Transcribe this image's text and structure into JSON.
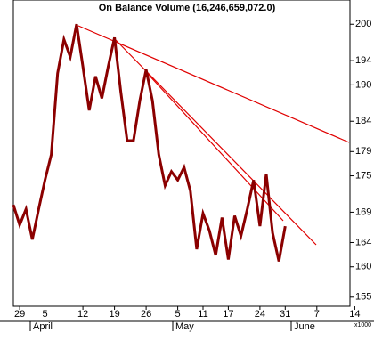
{
  "chart_data": {
    "type": "line",
    "title": "On Balance Volume (16,246,659,072.0)",
    "categories": [
      null,
      "29",
      null,
      null,
      null,
      "5",
      null,
      null,
      null,
      null,
      null,
      "12",
      null,
      null,
      null,
      null,
      "19",
      null,
      null,
      null,
      null,
      "26",
      null,
      null,
      null,
      null,
      "5",
      null,
      null,
      null,
      "11",
      null,
      null,
      null,
      "17",
      null,
      null,
      null,
      null,
      "24",
      null,
      null,
      null,
      "31",
      null,
      null,
      null,
      null,
      "7",
      null,
      null,
      null,
      null,
      null,
      "14"
    ],
    "months": [
      "April",
      "May",
      "June"
    ],
    "series": [
      {
        "name": "On Balance Volume",
        "color": "#8b0000",
        "values": [
          170.2,
          166.9,
          169.5,
          164.5,
          169.5,
          174.3,
          178.5,
          191.9,
          197.5,
          194.6,
          200.0,
          193.0,
          185.8,
          191.4,
          187.8,
          193.0,
          197.8,
          188.8,
          180.8,
          180.8,
          187.4,
          192.5,
          187.4,
          178.5,
          173.4,
          175.7,
          174.3,
          176.4,
          172.5,
          162.9,
          168.8,
          166.0,
          161.9,
          168.1,
          161.2,
          168.4,
          165.1,
          169.5,
          174.3,
          166.7,
          175.3,
          165.6,
          160.9,
          166.7,
          null,
          null,
          null,
          null,
          null,
          null,
          null,
          null,
          null,
          null,
          null
        ]
      }
    ],
    "ylim": [
      153.5,
      204
    ],
    "yticks": [
      200,
      194,
      190,
      184,
      179,
      175,
      169,
      164,
      160,
      155
    ],
    "y_unit": "x1000"
  }
}
